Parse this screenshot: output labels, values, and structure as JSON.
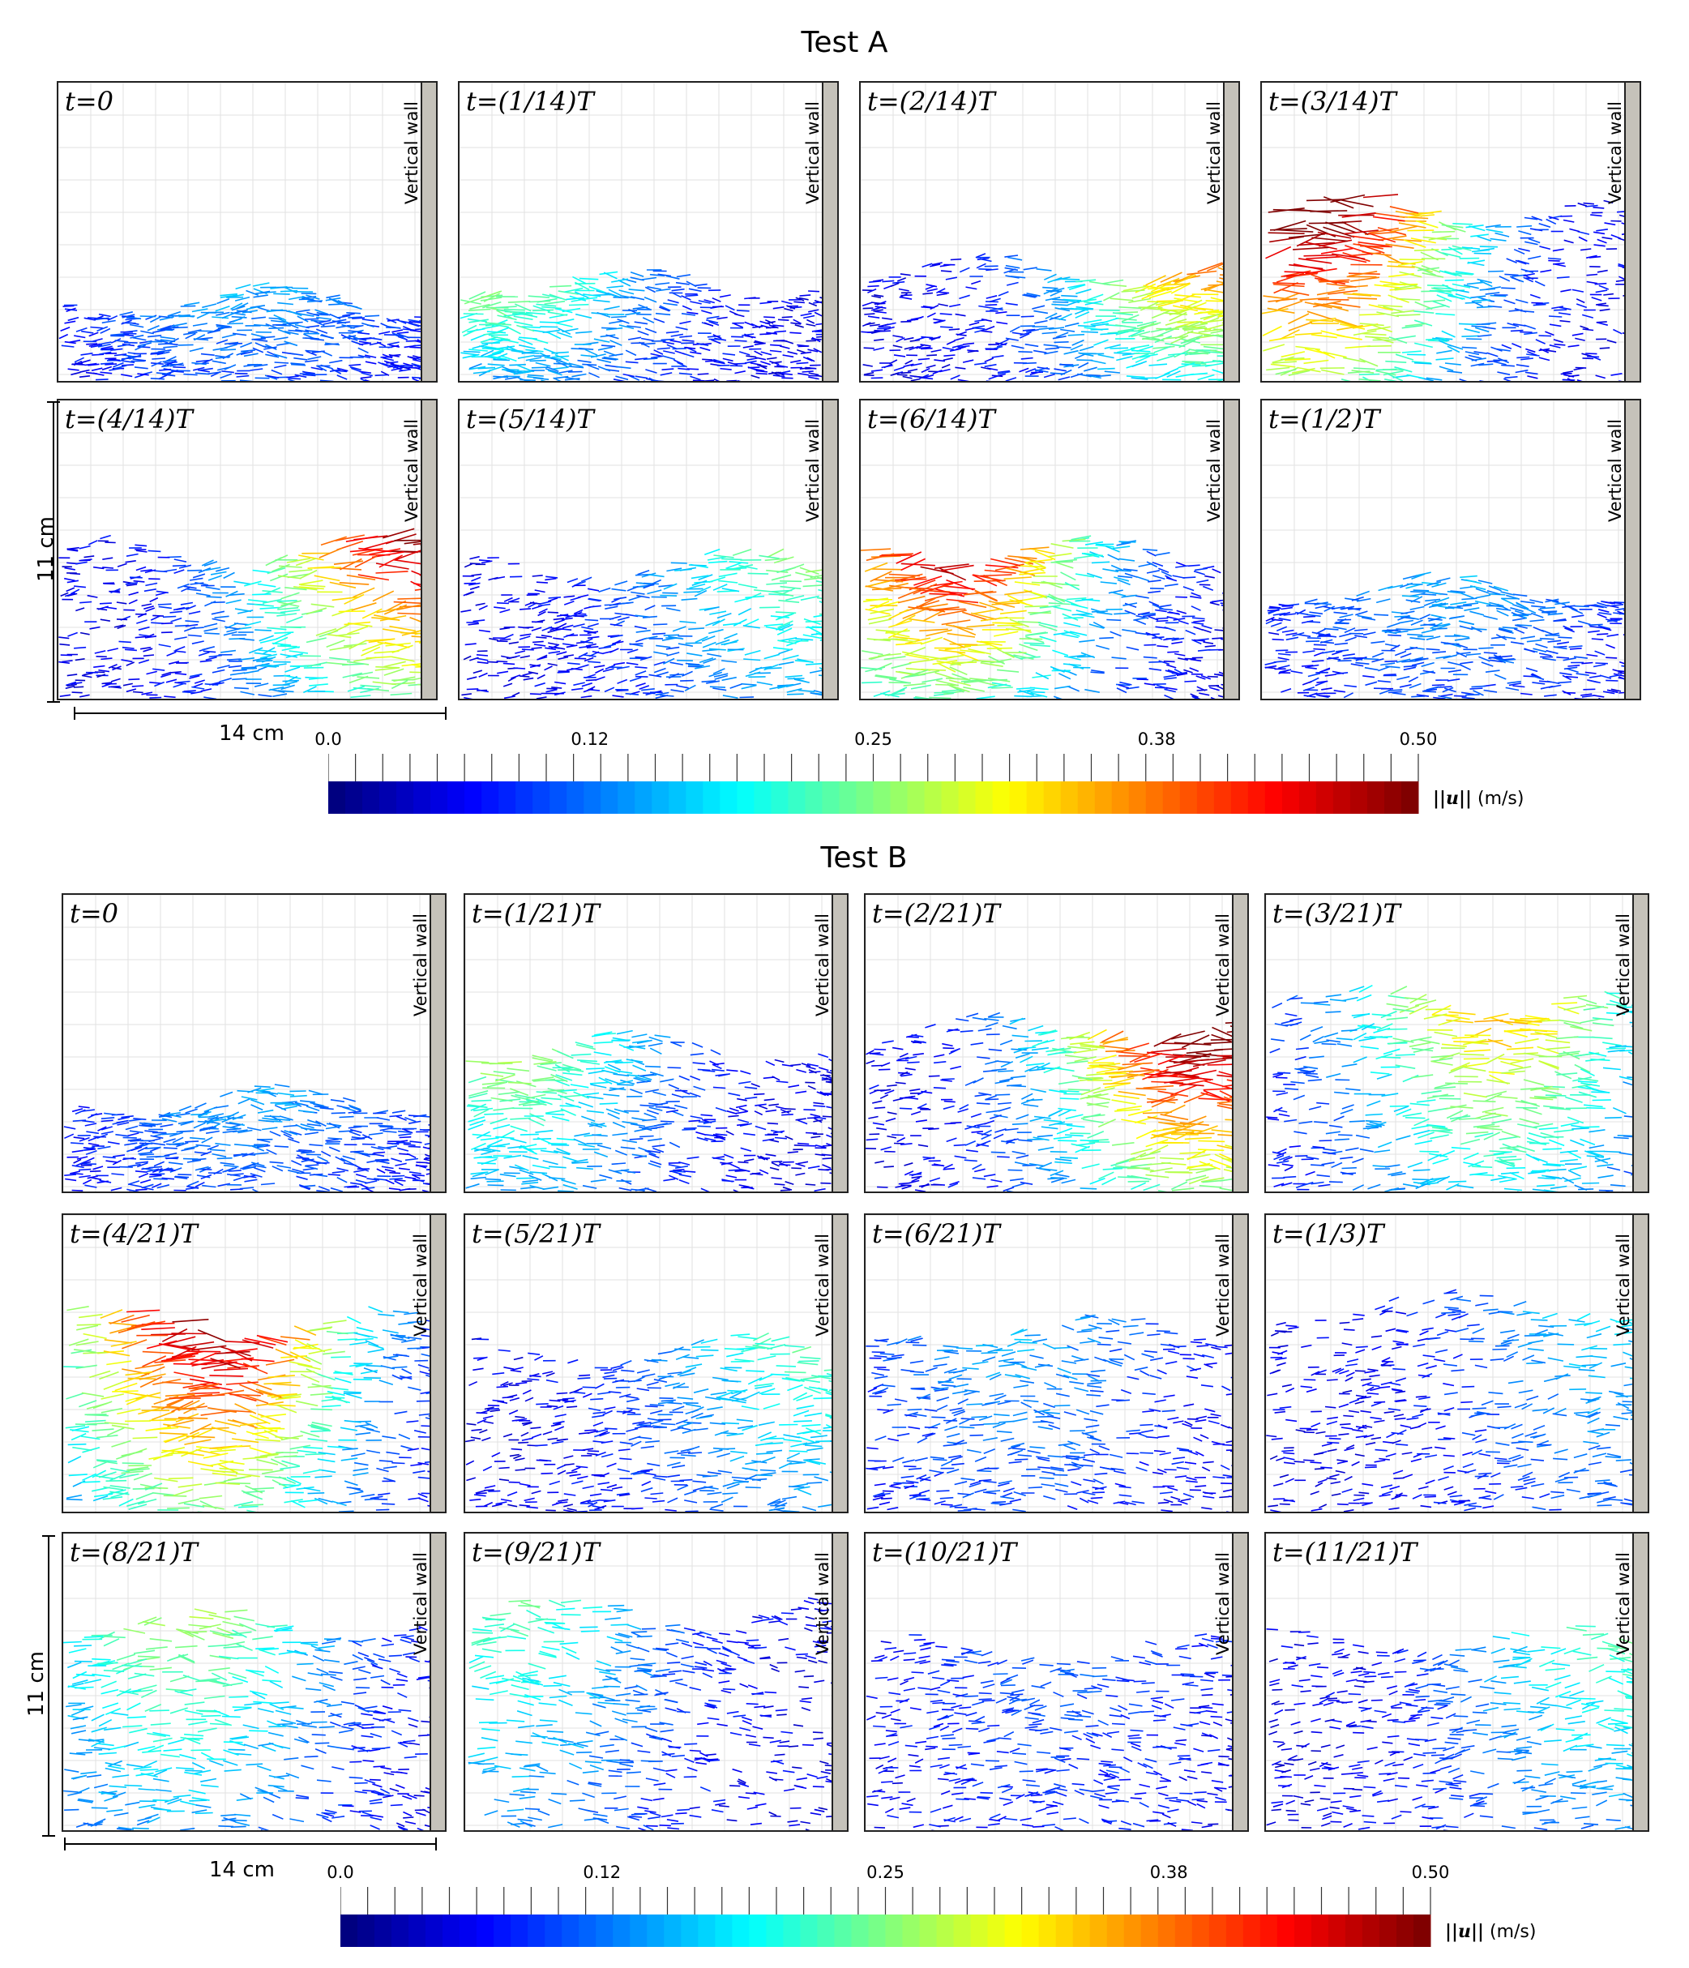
{
  "tests": [
    {
      "title": "Test A",
      "panels": [
        {
          "time": "t=0",
          "wall": "Vertical wall",
          "surface": 0.72,
          "peak": 0.1,
          "peak_at": 0.5
        },
        {
          "time": "t=(1/14)T",
          "wall": "Vertical wall",
          "surface": 0.66,
          "peak": 0.2,
          "peak_at": 0.1
        },
        {
          "time": "t=(2/14)T",
          "wall": "Vertical wall",
          "surface": 0.62,
          "peak": 0.33,
          "peak_at": 0.95
        },
        {
          "time": "t=(3/14)T",
          "wall": "Vertical wall",
          "surface": 0.42,
          "peak": 0.5,
          "peak_at": 0.1
        },
        {
          "time": "t=(4/14)T",
          "wall": "Vertical wall",
          "surface": 0.5,
          "peak": 0.45,
          "peak_at": 0.95
        },
        {
          "time": "t=(5/14)T",
          "wall": "Vertical wall",
          "surface": 0.55,
          "peak": 0.2,
          "peak_at": 0.9
        },
        {
          "time": "t=(6/14)T",
          "wall": "Vertical wall",
          "surface": 0.5,
          "peak": 0.42,
          "peak_at": 0.2
        },
        {
          "time": "t=(1/2)T",
          "wall": "Vertical wall",
          "surface": 0.62,
          "peak": 0.1,
          "peak_at": 0.5
        }
      ],
      "scale_x": "14 cm",
      "scale_y": "11 cm",
      "colorbar": {
        "ticks": [
          "0.0",
          "0.12",
          "0.25",
          "0.38",
          "0.50"
        ],
        "min": 0.0,
        "max": 0.5,
        "unit_symbol": "||u||",
        "unit": "(m/s)"
      }
    },
    {
      "title": "Test B",
      "panels": [
        {
          "time": "t=0",
          "wall": "Vertical wall",
          "surface": 0.68,
          "peak": 0.1,
          "peak_at": 0.5
        },
        {
          "time": "t=(1/21)T",
          "wall": "Vertical wall",
          "surface": 0.5,
          "peak": 0.22,
          "peak_at": 0.1
        },
        {
          "time": "t=(2/21)T",
          "wall": "Vertical wall",
          "surface": 0.45,
          "peak": 0.48,
          "peak_at": 0.9
        },
        {
          "time": "t=(3/21)T",
          "wall": "Vertical wall",
          "surface": 0.35,
          "peak": 0.3,
          "peak_at": 0.6
        },
        {
          "time": "t=(4/21)T",
          "wall": "Vertical wall",
          "surface": 0.35,
          "peak": 0.45,
          "peak_at": 0.35
        },
        {
          "time": "t=(5/21)T",
          "wall": "Vertical wall",
          "surface": 0.45,
          "peak": 0.18,
          "peak_at": 0.9
        },
        {
          "time": "t=(6/21)T",
          "wall": "Vertical wall",
          "surface": 0.38,
          "peak": 0.1,
          "peak_at": 0.4
        },
        {
          "time": "t=(1/3)T",
          "wall": "Vertical wall",
          "surface": 0.3,
          "peak": 0.12,
          "peak_at": 0.9
        },
        {
          "time": "t=(8/21)T",
          "wall": "Vertical wall",
          "surface": 0.3,
          "peak": 0.22,
          "peak_at": 0.3
        },
        {
          "time": "t=(9/21)T",
          "wall": "Vertical wall",
          "surface": 0.25,
          "peak": 0.18,
          "peak_at": 0.1
        },
        {
          "time": "t=(10/21)T",
          "wall": "Vertical wall",
          "surface": 0.38,
          "peak": 0.06,
          "peak_at": 0.5
        },
        {
          "time": "t=(11/21)T",
          "wall": "Vertical wall",
          "surface": 0.35,
          "peak": 0.18,
          "peak_at": 0.9
        }
      ],
      "scale_x": "14 cm",
      "scale_y": "11 cm",
      "colorbar": {
        "ticks": [
          "0.0",
          "0.12",
          "0.25",
          "0.38",
          "0.50"
        ],
        "min": 0.0,
        "max": 0.5,
        "unit_symbol": "||u||",
        "unit": "(m/s)"
      }
    }
  ],
  "chart_data": {
    "type": "heatmap",
    "title": "",
    "colormap": "jet",
    "value_range": [
      0.0,
      0.5
    ],
    "value_label": "||u|| (m/s)"
  }
}
